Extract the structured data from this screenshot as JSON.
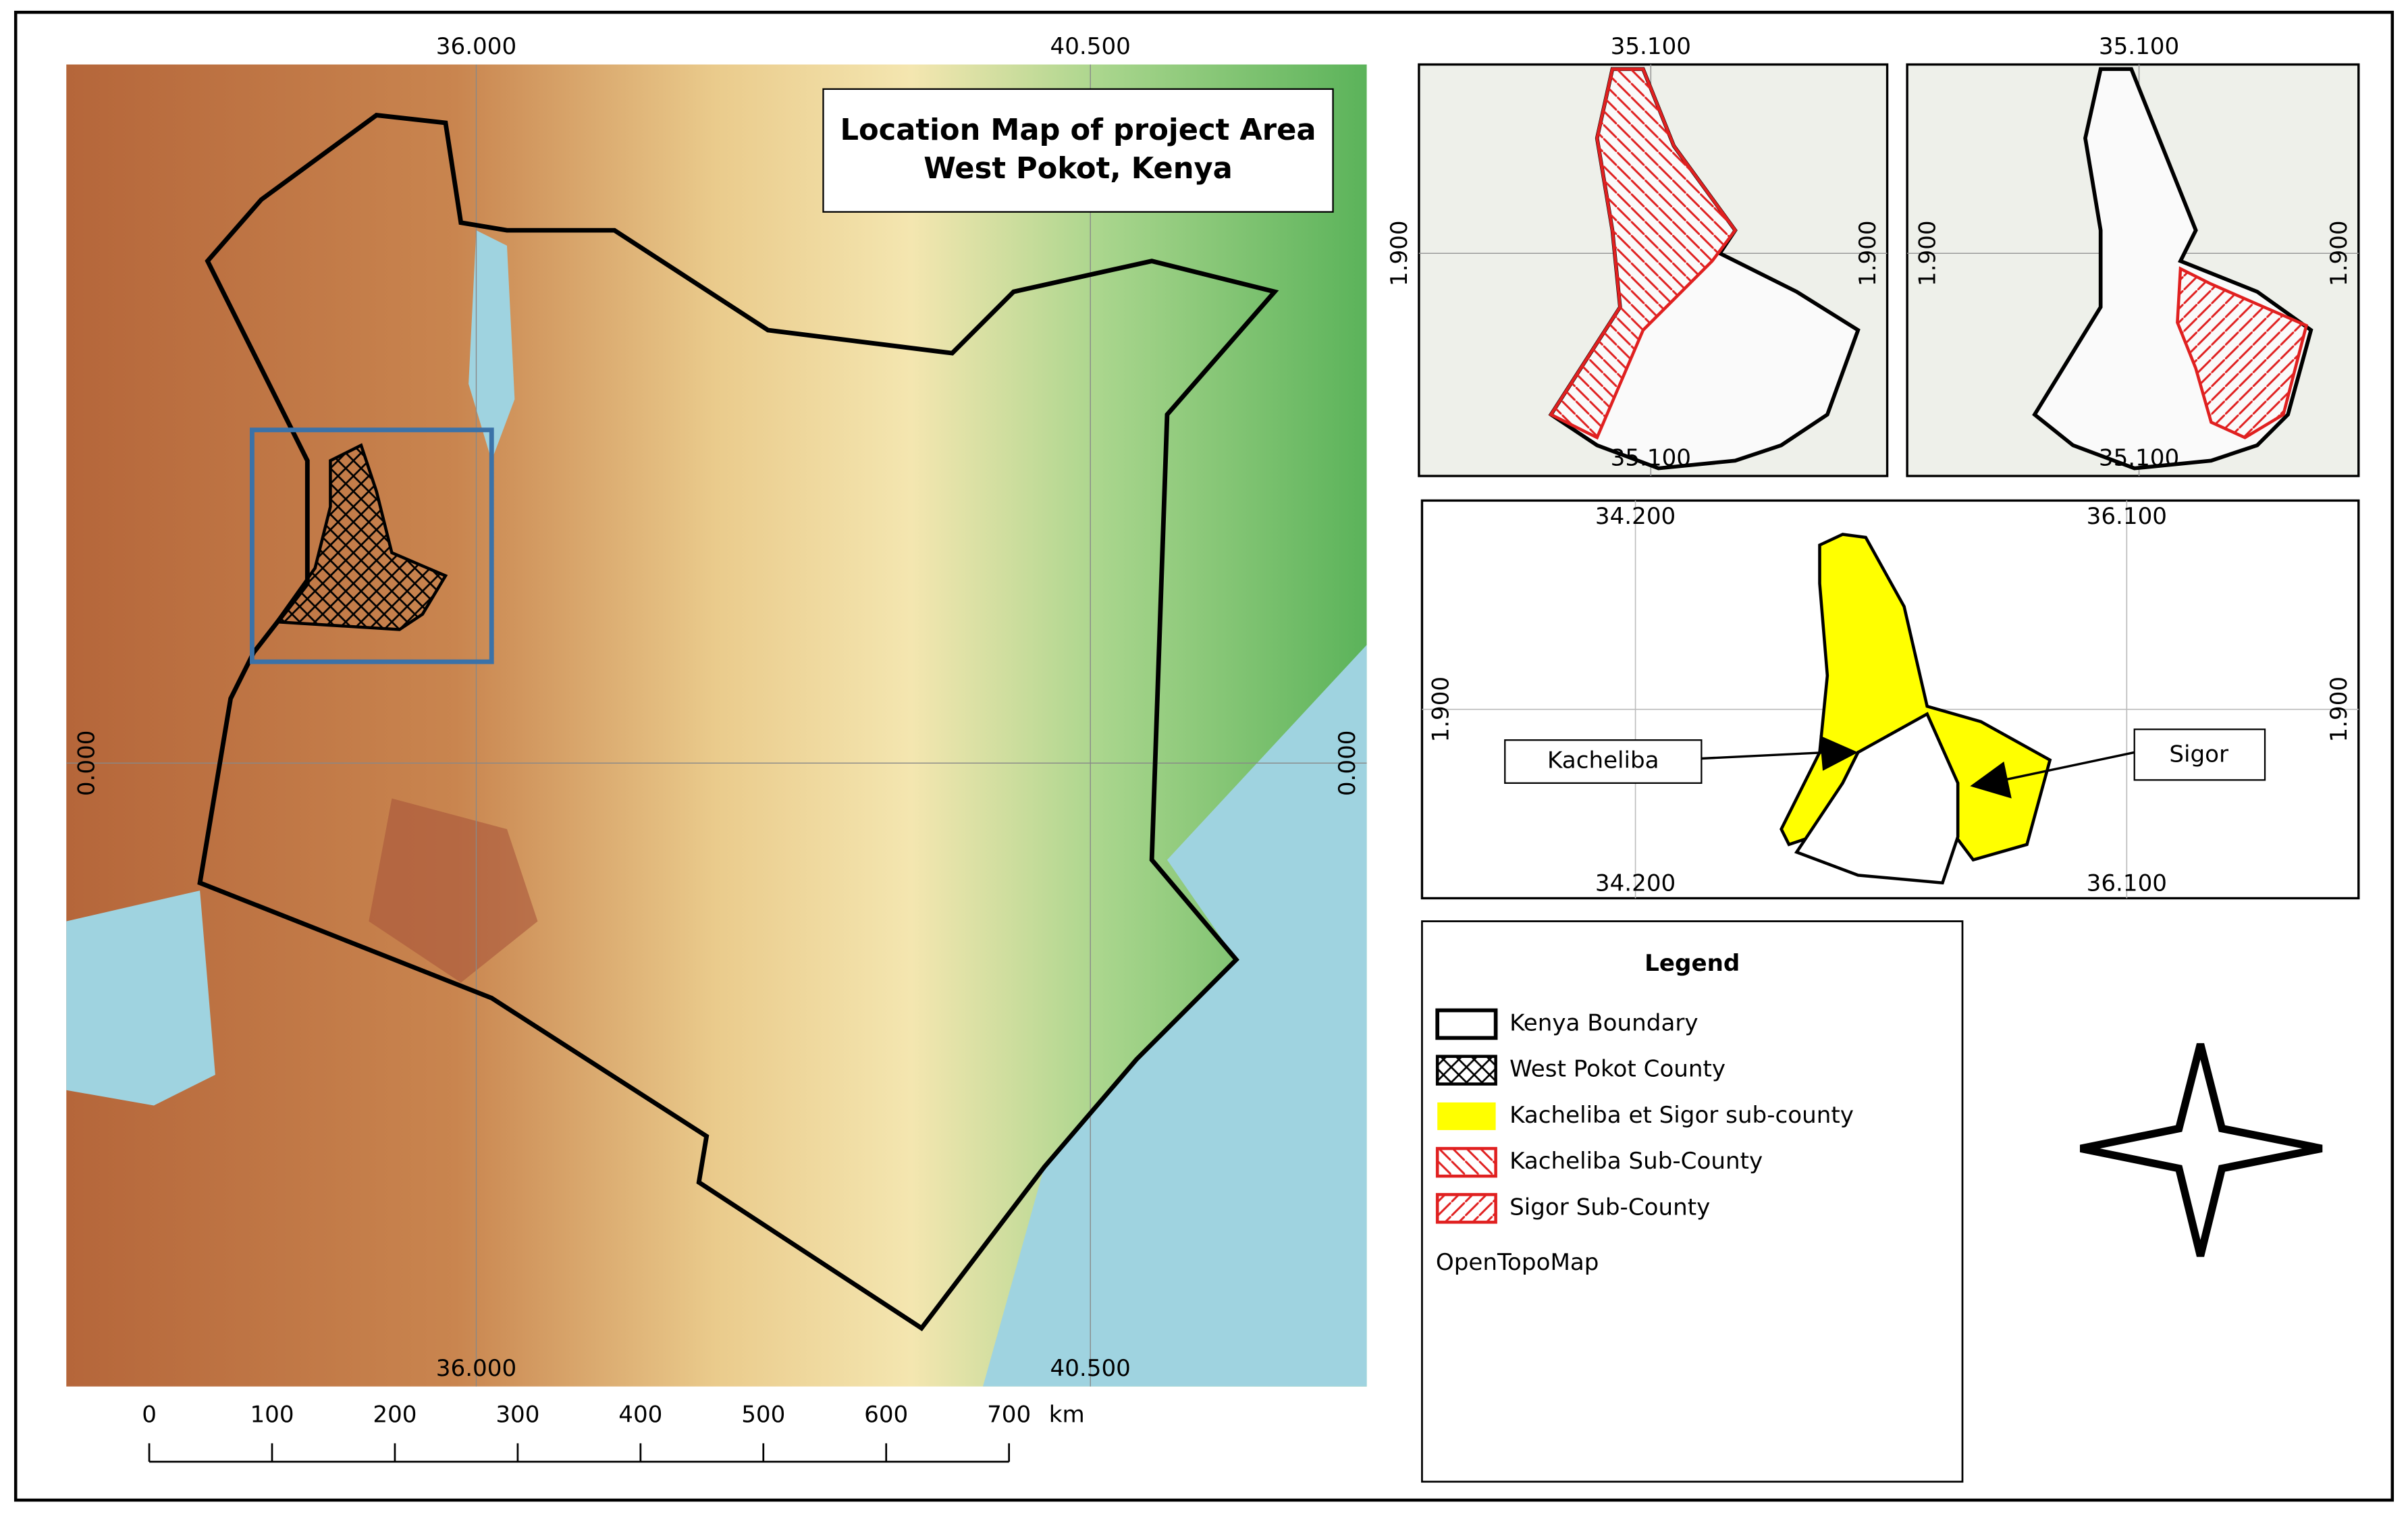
{
  "main_map": {
    "title": [
      "Location Map of project Area",
      "West Pokot, Kenya"
    ],
    "grid_labels": {
      "top": [
        "36.000",
        "40.500"
      ],
      "bottom": [
        "36.000",
        "40.500"
      ],
      "left": "0.000",
      "right": "0.000"
    },
    "scale_bar": {
      "ticks": [
        0,
        100,
        200,
        300,
        400,
        500,
        600,
        700
      ],
      "unit": "km"
    }
  },
  "inset_kacheliba": {
    "top": "35.100",
    "bottom": "35.100",
    "left": "1.900",
    "right": "1.900"
  },
  "inset_sigor": {
    "top": "35.100",
    "bottom": "35.100",
    "left": "1.900",
    "right": "1.900"
  },
  "subcounty_map": {
    "top": [
      "34.200",
      "36.100"
    ],
    "bottom": [
      "34.200",
      "36.100"
    ],
    "left": "1.900",
    "right": "1.900",
    "labels": [
      "Kacheliba",
      "Sigor"
    ]
  },
  "legend": {
    "title": "Legend",
    "items": [
      "Kenya Boundary",
      "West Pokot County",
      "Kacheliba et Sigor sub-county",
      "Kacheliba Sub-County",
      "Sigor Sub-County"
    ],
    "source": "OpenTopoMap"
  }
}
